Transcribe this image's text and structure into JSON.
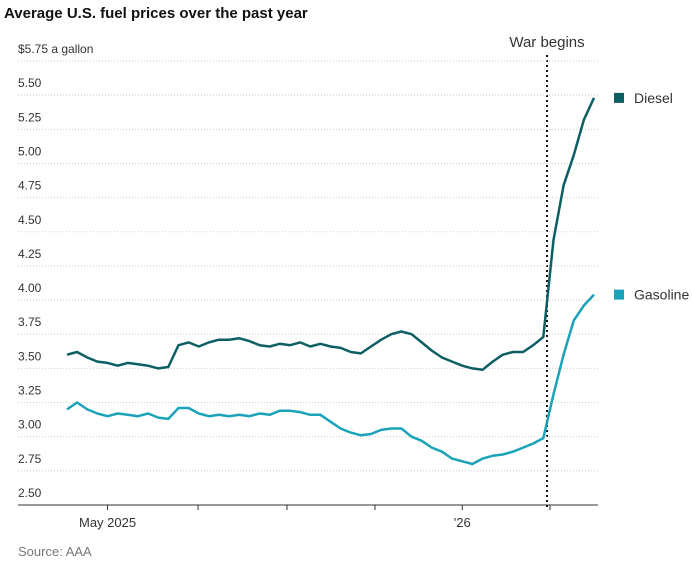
{
  "chart_data": {
    "type": "line",
    "title": "Average U.S. fuel prices over the past year",
    "source": "Source: AAA",
    "annotation": "War begins",
    "categories": [
      null,
      null,
      null,
      null,
      "May 2025",
      null,
      null,
      null,
      null,
      null,
      null,
      null,
      null,
      null,
      null,
      null,
      null,
      null,
      null,
      null,
      null,
      null,
      null,
      null,
      null,
      null,
      null,
      null,
      null,
      null,
      null,
      null,
      null,
      null,
      null,
      null,
      null,
      null,
      null,
      "'26",
      null,
      null,
      null,
      null,
      null,
      null,
      null,
      null,
      null,
      null,
      null,
      null,
      null
    ],
    "series": [
      {
        "name": "Diesel",
        "color": "#0d5f63",
        "values": [
          3.6,
          3.62,
          3.58,
          3.55,
          3.54,
          3.52,
          3.54,
          3.53,
          3.52,
          3.5,
          3.51,
          3.67,
          3.69,
          3.66,
          3.69,
          3.71,
          3.71,
          3.72,
          3.7,
          3.67,
          3.66,
          3.68,
          3.67,
          3.69,
          3.66,
          3.68,
          3.66,
          3.65,
          3.62,
          3.61,
          3.66,
          3.71,
          3.75,
          3.77,
          3.75,
          3.69,
          3.63,
          3.58,
          3.55,
          3.52,
          3.5,
          3.49,
          3.55,
          3.6,
          3.62,
          3.62,
          3.67,
          3.73,
          4.44,
          4.84,
          5.06,
          5.32,
          5.48
        ]
      },
      {
        "name": "Gasoline",
        "color": "#1aa3b8",
        "values": [
          3.2,
          3.25,
          3.2,
          3.17,
          3.15,
          3.17,
          3.16,
          3.15,
          3.17,
          3.14,
          3.13,
          3.21,
          3.21,
          3.17,
          3.15,
          3.16,
          3.15,
          3.16,
          3.15,
          3.17,
          3.16,
          3.19,
          3.19,
          3.18,
          3.16,
          3.16,
          3.11,
          3.06,
          3.03,
          3.01,
          3.02,
          3.05,
          3.06,
          3.06,
          3.0,
          2.97,
          2.92,
          2.89,
          2.84,
          2.82,
          2.8,
          2.84,
          2.86,
          2.87,
          2.89,
          2.92,
          2.95,
          2.99,
          3.31,
          3.6,
          3.85,
          3.96,
          4.04
        ]
      }
    ],
    "ylim": [
      2.5,
      5.75
    ],
    "yticks": [
      {
        "value": 2.5,
        "label": "2.50"
      },
      {
        "value": 2.75,
        "label": "2.75"
      },
      {
        "value": 3,
        "label": "3.00"
      },
      {
        "value": 3.25,
        "label": "3.25"
      },
      {
        "value": 3.5,
        "label": "3.50"
      },
      {
        "value": 3.75,
        "label": "3.75"
      },
      {
        "value": 4,
        "label": "4.00"
      },
      {
        "value": 4.25,
        "label": "4.25"
      },
      {
        "value": 4.5,
        "label": "4.50"
      },
      {
        "value": 4.75,
        "label": "4.75"
      },
      {
        "value": 5,
        "label": "5.00"
      },
      {
        "value": 5.25,
        "label": "5.25"
      },
      {
        "value": 5.5,
        "label": "5.50"
      },
      {
        "value": 5.75,
        "label": "$5.75 a gallon"
      }
    ],
    "grid": true
  }
}
